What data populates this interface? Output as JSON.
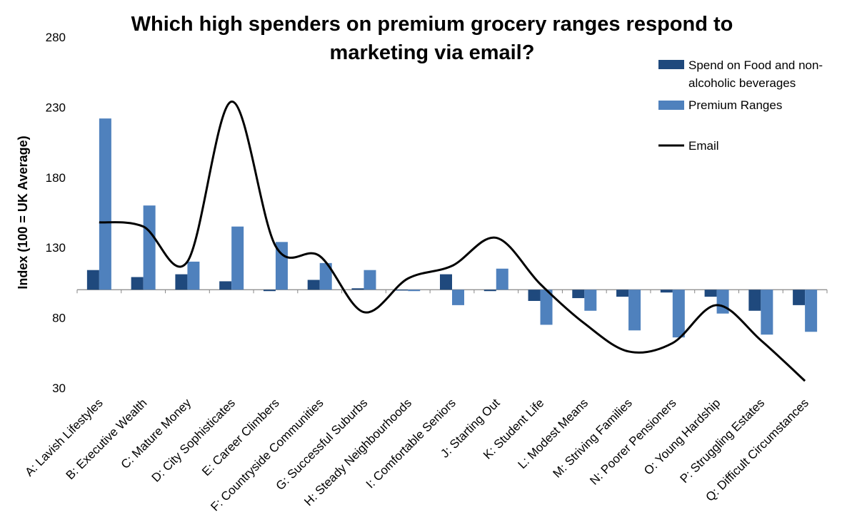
{
  "title_lines": [
    "Which high spenders on premium grocery ranges respond to",
    "marketing via email?"
  ],
  "chart_data": {
    "type": "bar",
    "title": "Which high spenders on premium grocery ranges respond to marketing via email?",
    "ylabel": "Index (100 = UK Average)",
    "xlabel": "",
    "ylim": [
      30,
      280
    ],
    "yticks": [
      30,
      80,
      130,
      180,
      230,
      280
    ],
    "baseline": 100,
    "legend_position": "top-right",
    "legend_lines": [
      [
        "Spend on Food and non-",
        "alcoholic beverages"
      ],
      [
        "Premium Ranges"
      ],
      [
        "Email"
      ]
    ],
    "categories": [
      "A: Lavish Lifestyles",
      "B: Executive Wealth",
      "C: Mature Money",
      "D: City Sophisticates",
      "E: Career Climbers",
      "F: Countryside Communities",
      "G: Successful Suburbs",
      "H: Steady Neighbourhoods",
      "I: Comfortable Seniors",
      "J: Starting Out",
      "K: Student Life",
      "L: Modest Means",
      "M: Striving Families",
      "N: Poorer Pensioners",
      "O: Young Hardship",
      "P: Struggling Estates",
      "Q: Difficult Circumstances"
    ],
    "series": [
      {
        "name": "Spend on Food and non-alcoholic beverages",
        "type": "bar",
        "color": "#1F497D",
        "values": [
          114,
          109,
          111,
          106,
          99,
          107,
          101,
          100,
          111,
          99,
          92,
          94,
          95,
          98,
          95,
          85,
          89
        ]
      },
      {
        "name": "Premium Ranges",
        "type": "bar",
        "color": "#4F81BD",
        "values": [
          222,
          160,
          120,
          145,
          134,
          119,
          114,
          99,
          89,
          115,
          75,
          85,
          71,
          66,
          83,
          68,
          70
        ]
      },
      {
        "name": "Email",
        "type": "line",
        "color": "#000000",
        "values": [
          148,
          145,
          120,
          234,
          131,
          124,
          84,
          108,
          117,
          137,
          104,
          76,
          56,
          62,
          89,
          64,
          35
        ]
      }
    ]
  }
}
